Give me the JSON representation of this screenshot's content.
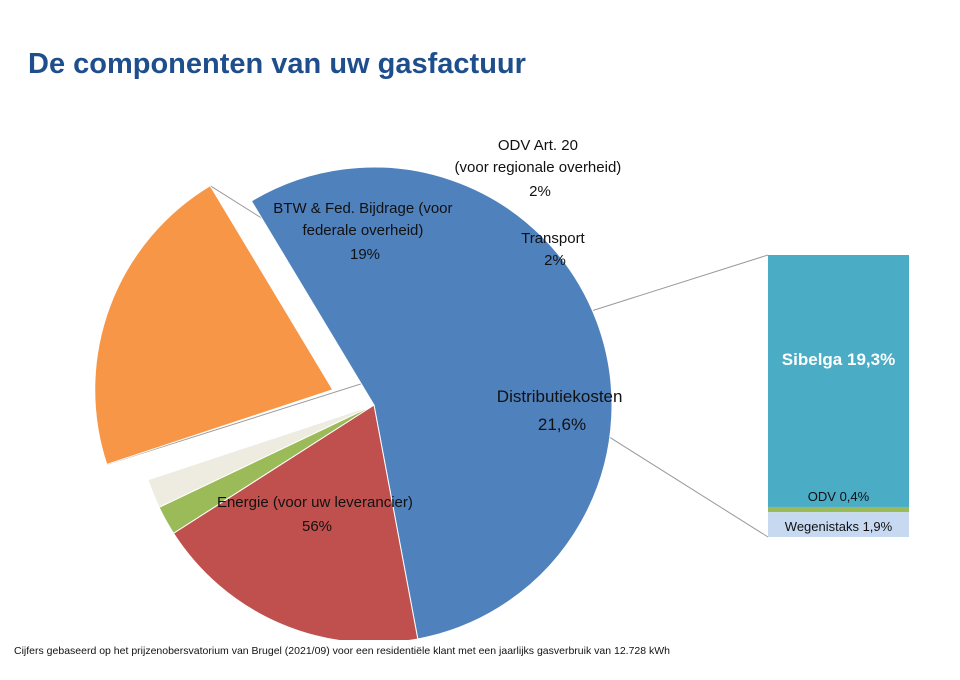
{
  "title": "De componenten van uw gasfactuur",
  "footnote": "Cijfers gebaseerd op het prijzenobersvatorium van Brugel  (2021/09) voor een residentiële klant met een jaarlijks gasverbruik van 12.728 kWh",
  "chart_data": {
    "type": "pie",
    "categories": [
      "Energie (voor uw leverancier)",
      "BTW & Fed. Bijdrage (voor federale overheid)",
      "ODV Art. 20 (voor regionale overheid)",
      "Transport",
      "Distributiekosten"
    ],
    "values": [
      56,
      19,
      2,
      2,
      21.6
    ],
    "value_labels": [
      "56%",
      "19%",
      "2%",
      "2%",
      "21,6%"
    ],
    "colors": [
      "#4f81bd",
      "#c0504d",
      "#9bbb59",
      "#eeece1",
      "#f79646"
    ],
    "exploded": "Distributiekosten",
    "breakdown": {
      "of": "Distributiekosten",
      "type": "stacked-bar",
      "categories": [
        "Sibelga",
        "ODV",
        "Wegenistaks"
      ],
      "values": [
        19.3,
        0.4,
        1.9
      ],
      "labels": [
        "Sibelga 19,3%",
        "ODV 0,4%",
        "Wegenistaks 1,9%"
      ],
      "colors": [
        "#4bacc6",
        "#9bbb59",
        "#c6d9f1"
      ]
    }
  },
  "label_lines": {
    "energie": [
      "Energie (voor uw leverancier)",
      "56%"
    ],
    "btw": [
      "BTW & Fed. Bijdrage (voor",
      "federale overheid)",
      "19%"
    ],
    "odv": [
      "ODV Art. 20",
      "(voor regionale overheid)",
      "2%"
    ],
    "transport": [
      "Transport",
      "2%"
    ],
    "distributie": [
      "Distributiekosten",
      "21,6%"
    ]
  }
}
